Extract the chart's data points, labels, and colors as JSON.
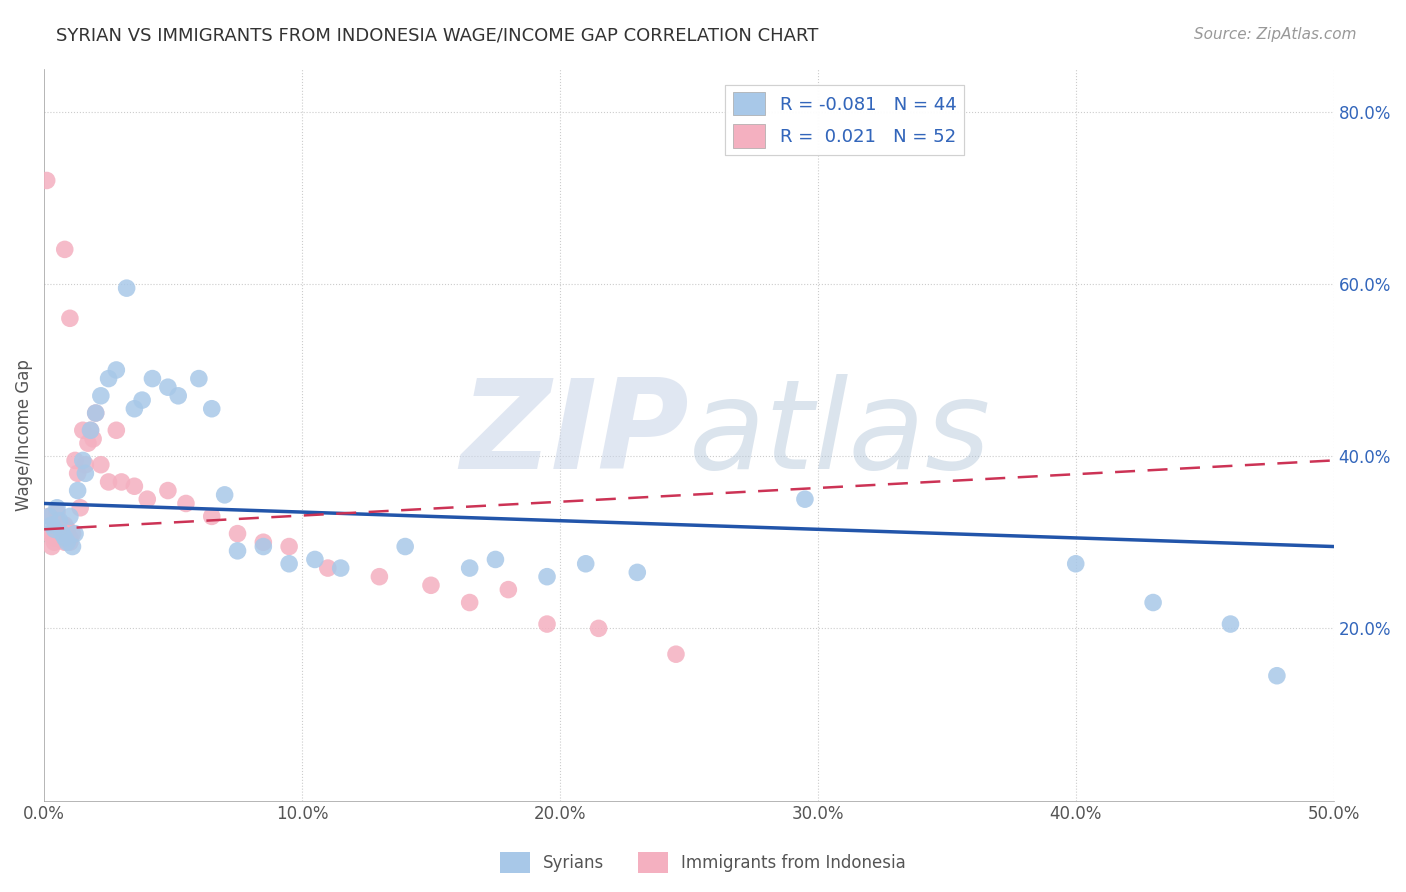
{
  "title": "SYRIAN VS IMMIGRANTS FROM INDONESIA WAGE/INCOME GAP CORRELATION CHART",
  "source": "Source: ZipAtlas.com",
  "ylabel": "Wage/Income Gap",
  "xlim": [
    0.0,
    0.5
  ],
  "ylim": [
    0.0,
    0.85
  ],
  "xtick_labels": [
    "0.0%",
    "10.0%",
    "20.0%",
    "30.0%",
    "40.0%",
    "50.0%"
  ],
  "xtick_vals": [
    0.0,
    0.1,
    0.2,
    0.3,
    0.4,
    0.5
  ],
  "ytick_labels": [
    "20.0%",
    "40.0%",
    "60.0%",
    "80.0%"
  ],
  "ytick_vals": [
    0.2,
    0.4,
    0.6,
    0.8
  ],
  "blue_color": "#a8c8e8",
  "pink_color": "#f4b0c0",
  "blue_line_color": "#2255aa",
  "pink_line_color": "#cc3355",
  "watermark_zip": "ZIP",
  "watermark_atlas": "atlas",
  "watermark_color_zip": "#c8d4e8",
  "watermark_color_atlas": "#b8c8d8",
  "legend_blue_label": "R = -0.081   N = 44",
  "legend_pink_label": "R =  0.021   N = 52",
  "legend_bottom_blue": "Syrians",
  "legend_bottom_pink": "Immigrants from Indonesia",
  "blue_x": [
    0.002,
    0.003,
    0.004,
    0.005,
    0.006,
    0.007,
    0.008,
    0.009,
    0.01,
    0.011,
    0.012,
    0.013,
    0.015,
    0.016,
    0.018,
    0.02,
    0.022,
    0.025,
    0.028,
    0.032,
    0.035,
    0.038,
    0.042,
    0.048,
    0.052,
    0.06,
    0.065,
    0.07,
    0.075,
    0.085,
    0.095,
    0.105,
    0.115,
    0.14,
    0.165,
    0.175,
    0.195,
    0.21,
    0.23,
    0.295,
    0.4,
    0.43,
    0.46,
    0.478
  ],
  "blue_y": [
    0.33,
    0.32,
    0.315,
    0.34,
    0.325,
    0.31,
    0.305,
    0.3,
    0.33,
    0.295,
    0.31,
    0.36,
    0.395,
    0.38,
    0.43,
    0.45,
    0.47,
    0.49,
    0.5,
    0.595,
    0.455,
    0.465,
    0.49,
    0.48,
    0.47,
    0.49,
    0.455,
    0.355,
    0.29,
    0.295,
    0.275,
    0.28,
    0.27,
    0.295,
    0.27,
    0.28,
    0.26,
    0.275,
    0.265,
    0.35,
    0.275,
    0.23,
    0.205,
    0.145
  ],
  "pink_x": [
    0.001,
    0.002,
    0.002,
    0.003,
    0.003,
    0.004,
    0.004,
    0.005,
    0.005,
    0.005,
    0.006,
    0.006,
    0.007,
    0.007,
    0.008,
    0.008,
    0.009,
    0.009,
    0.01,
    0.01,
    0.011,
    0.012,
    0.013,
    0.014,
    0.015,
    0.016,
    0.017,
    0.018,
    0.019,
    0.02,
    0.022,
    0.025,
    0.028,
    0.03,
    0.035,
    0.04,
    0.048,
    0.055,
    0.065,
    0.075,
    0.085,
    0.095,
    0.11,
    0.13,
    0.15,
    0.165,
    0.18,
    0.195,
    0.215,
    0.245,
    0.008,
    0.01
  ],
  "pink_y": [
    0.72,
    0.33,
    0.31,
    0.295,
    0.31,
    0.305,
    0.3,
    0.335,
    0.325,
    0.315,
    0.31,
    0.31,
    0.32,
    0.305,
    0.3,
    0.32,
    0.315,
    0.31,
    0.305,
    0.3,
    0.31,
    0.395,
    0.38,
    0.34,
    0.43,
    0.39,
    0.415,
    0.43,
    0.42,
    0.45,
    0.39,
    0.37,
    0.43,
    0.37,
    0.365,
    0.35,
    0.36,
    0.345,
    0.33,
    0.31,
    0.3,
    0.295,
    0.27,
    0.26,
    0.25,
    0.23,
    0.245,
    0.205,
    0.2,
    0.17,
    0.64,
    0.56
  ],
  "blue_trend_x": [
    0.0,
    0.5
  ],
  "blue_trend_y": [
    0.345,
    0.295
  ],
  "pink_trend_x": [
    0.0,
    0.5
  ],
  "pink_trend_y": [
    0.315,
    0.395
  ]
}
